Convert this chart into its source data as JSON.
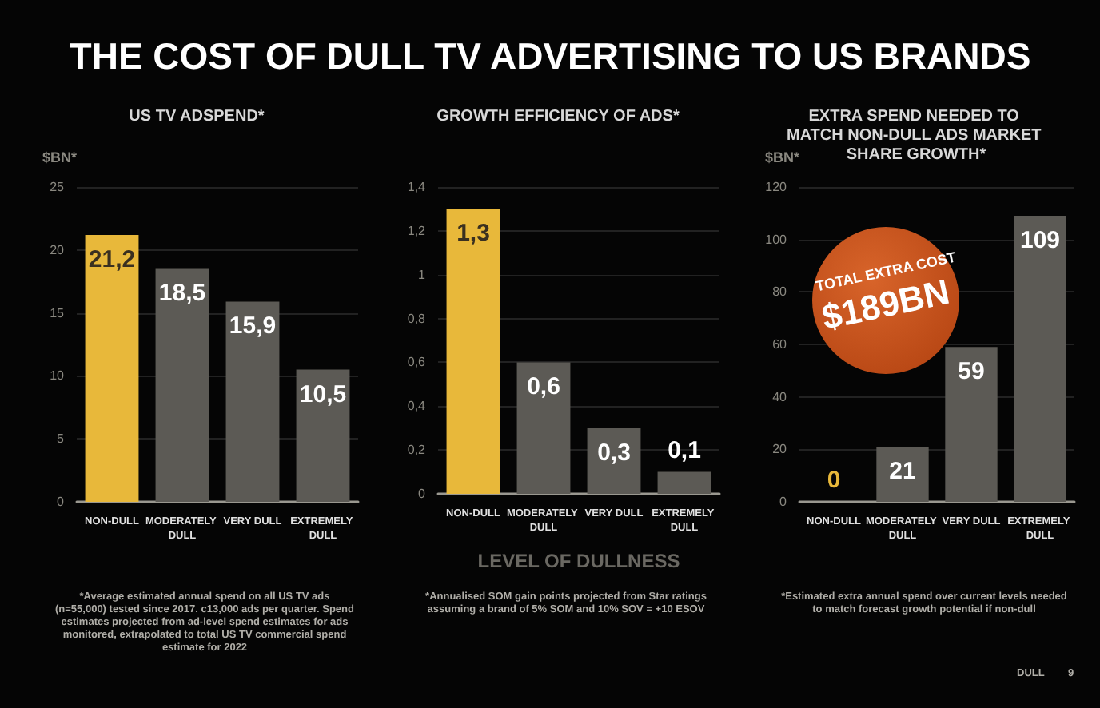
{
  "chart_data": [
    {
      "type": "bar",
      "title": "THE COST OF DULL TV ADVERTISING TO US BRANDS",
      "subtitle": "US TV ADSPEND*",
      "ylabel": "$BN*",
      "categories": [
        "NON-DULL",
        "MODERATELY DULL",
        "VERY DULL",
        "EXTREMELY DULL"
      ],
      "values": [
        21.2,
        18.5,
        15.9,
        10.5
      ],
      "colors": [
        "#e8b83a",
        "#5c5a55",
        "#5c5a55",
        "#5c5a55"
      ],
      "value_labels": [
        "21,2",
        "18,5",
        "15,9",
        "10,5"
      ],
      "ylim": [
        0,
        25
      ],
      "yticks": [
        0,
        5,
        10,
        15,
        20,
        25
      ],
      "grid": "y",
      "annotations": [
        "*Average estimated annual spend on all US TV ads (n=55,000) tested since 2017. c13,000 ads per quarter. Spend estimates projected from ad-level spend estimates for ads monitored, extrapolated to total US TV commercial spend estimate for 2022"
      ]
    },
    {
      "type": "bar",
      "title": "GROWTH EFFICIENCY OF ADS*",
      "xlabel": "LEVEL OF DULLNESS",
      "categories": [
        "NON-DULL",
        "MODERATELY DULL",
        "VERY DULL",
        "EXTREMELY DULL"
      ],
      "values": [
        1.3,
        0.6,
        0.3,
        0.1
      ],
      "colors": [
        "#e8b83a",
        "#5c5a55",
        "#5c5a55",
        "#5c5a55"
      ],
      "value_labels": [
        "1,3",
        "0,6",
        "0,3",
        "0,1"
      ],
      "ylim": [
        0,
        1.4
      ],
      "yticks": [
        0,
        {
          "value": 0.2,
          "label": "0,2"
        },
        {
          "value": 0.4,
          "label": "0,4"
        },
        {
          "value": 0.6,
          "label": "0,6"
        },
        {
          "value": 0.8,
          "label": "0,8"
        },
        1,
        {
          "value": 1.2,
          "label": "1,2"
        },
        {
          "value": 1.4,
          "label": "1,4"
        }
      ],
      "grid": "y",
      "annotations": [
        "*Annualised SOM gain points projected from Star ratings assuming a brand of 5% SOM and 10% SOV = +10 ESOV"
      ]
    },
    {
      "type": "bar",
      "title": "EXTRA SPEND NEEDED TO MATCH NON-DULL ADS MARKET SHARE GROWTH*",
      "ylabel": "$BN*",
      "categories": [
        "NON-DULL",
        "MODERATELY DULL",
        "VERY DULL",
        "EXTREMELY DULL"
      ],
      "values": [
        0,
        21,
        59,
        109
      ],
      "colors": [
        "#e8b83a",
        "#5c5a55",
        "#5c5a55",
        "#5c5a55"
      ],
      "value_labels": [
        "0",
        "21",
        "59",
        "109"
      ],
      "ylim": [
        0,
        120
      ],
      "yticks": [
        0,
        20,
        40,
        60,
        80,
        100,
        120
      ],
      "grid": "y",
      "annotations": [
        "TOTAL EXTRA COST",
        "$189BN",
        "*Estimated extra annual spend over current levels needed to match forecast growth potential if non-dull",
        "DULL",
        "9"
      ]
    }
  ]
}
